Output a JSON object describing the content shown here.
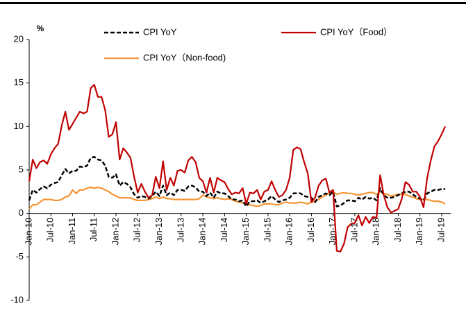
{
  "chart_data": {
    "type": "line",
    "y_label": "%",
    "categories": [
      "Jan-10",
      null,
      null,
      null,
      null,
      null,
      "Jul-10",
      null,
      null,
      null,
      null,
      null,
      "Jan-11",
      null,
      null,
      null,
      null,
      null,
      "Jul-11",
      null,
      null,
      null,
      null,
      null,
      "Jan-12",
      null,
      null,
      null,
      null,
      null,
      "Jul-12",
      null,
      null,
      null,
      null,
      null,
      "Jan-13",
      null,
      null,
      null,
      null,
      null,
      "Jul-13",
      null,
      null,
      null,
      null,
      null,
      "Jan-14",
      null,
      null,
      null,
      null,
      null,
      "Jul-14",
      null,
      null,
      null,
      null,
      null,
      "Jan-15",
      null,
      null,
      null,
      null,
      null,
      "Jul-15",
      null,
      null,
      null,
      null,
      null,
      "Jan-16",
      null,
      null,
      null,
      null,
      null,
      "Jul-16",
      null,
      null,
      null,
      null,
      null,
      "Jan-17",
      null,
      null,
      null,
      null,
      null,
      "Jul-17",
      null,
      null,
      null,
      null,
      null,
      "Jan-18",
      null,
      null,
      null,
      null,
      null,
      "Jul-18",
      null,
      null,
      null,
      null,
      null,
      "Jan-19",
      null,
      null,
      null,
      null,
      null,
      "Jul-19",
      null
    ],
    "series": [
      {
        "name": "CPI YoY",
        "color": "#000000",
        "dashed": true,
        "values": [
          1.5,
          2.7,
          2.4,
          2.8,
          3.1,
          2.9,
          3.3,
          3.5,
          3.6,
          4.4,
          5.1,
          4.6,
          4.9,
          4.9,
          5.4,
          5.3,
          5.5,
          6.4,
          6.5,
          6.2,
          6.1,
          5.5,
          4.2,
          4.1,
          4.5,
          3.2,
          3.6,
          3.4,
          3.0,
          2.2,
          1.8,
          2.0,
          1.9,
          1.7,
          2.0,
          2.5,
          2.0,
          3.2,
          2.1,
          2.4,
          2.1,
          2.7,
          2.7,
          2.6,
          3.1,
          3.2,
          3.0,
          2.5,
          2.5,
          2.0,
          2.4,
          1.8,
          2.5,
          2.3,
          2.3,
          2.0,
          1.6,
          1.6,
          1.4,
          1.5,
          0.8,
          1.4,
          1.4,
          1.5,
          1.2,
          1.4,
          1.6,
          2.0,
          1.6,
          1.3,
          1.5,
          1.6,
          1.8,
          2.3,
          2.3,
          2.3,
          2.0,
          1.9,
          1.8,
          1.3,
          1.9,
          2.1,
          2.3,
          2.1,
          2.5,
          0.8,
          0.9,
          1.2,
          1.5,
          1.5,
          1.4,
          1.8,
          1.6,
          1.9,
          1.7,
          1.8,
          1.5,
          2.9,
          2.1,
          1.8,
          1.8,
          1.9,
          2.1,
          2.3,
          2.5,
          2.5,
          2.2,
          1.9,
          1.7,
          1.5,
          2.3,
          2.5,
          2.7,
          2.7,
          2.8,
          2.8
        ]
      },
      {
        "name": "CPI YoY（Food）",
        "color": "#c00000",
        "dashed": false,
        "values": [
          3.7,
          6.2,
          5.2,
          5.9,
          6.1,
          5.7,
          6.8,
          7.5,
          8.0,
          10.1,
          11.7,
          9.6,
          10.3,
          11.0,
          11.7,
          11.5,
          11.7,
          14.4,
          14.8,
          13.4,
          13.4,
          11.9,
          8.8,
          9.1,
          10.5,
          6.2,
          7.5,
          7.0,
          6.4,
          4.2,
          2.4,
          3.4,
          2.5,
          1.8,
          2.1,
          4.2,
          2.9,
          6.0,
          2.7,
          4.1,
          3.2,
          4.9,
          5.0,
          4.7,
          6.1,
          6.5,
          5.9,
          4.1,
          3.7,
          2.4,
          4.1,
          2.4,
          4.1,
          3.8,
          3.6,
          2.8,
          2.2,
          2.4,
          2.3,
          2.9,
          1.1,
          2.4,
          2.3,
          2.7,
          1.6,
          2.5,
          2.7,
          3.7,
          2.7,
          1.9,
          2.1,
          2.7,
          4.1,
          7.3,
          7.6,
          7.4,
          5.9,
          4.6,
          1.3,
          1.8,
          3.2,
          3.8,
          4.0,
          2.4,
          2.7,
          -4.3,
          -4.4,
          -3.5,
          -1.6,
          -1.2,
          -1.1,
          -0.2,
          -1.4,
          -0.4,
          -1.1,
          -0.4,
          -0.5,
          4.4,
          2.1,
          0.7,
          0.1,
          0.3,
          0.5,
          1.7,
          3.6,
          3.3,
          2.5,
          2.5,
          1.9,
          0.7,
          4.1,
          6.1,
          7.7,
          8.3,
          9.1,
          10.0
        ]
      },
      {
        "name": "CPI YoY（Non-food)",
        "color": "#f79433",
        "dashed": false,
        "values": [
          0.5,
          1.0,
          1.0,
          1.3,
          1.6,
          1.6,
          1.6,
          1.5,
          1.5,
          1.6,
          1.9,
          2.0,
          2.7,
          2.3,
          2.7,
          2.7,
          2.9,
          3.0,
          2.9,
          3.0,
          2.9,
          2.7,
          2.5,
          2.2,
          2.0,
          1.8,
          1.8,
          1.8,
          1.8,
          1.6,
          1.5,
          1.5,
          1.5,
          1.6,
          1.7,
          1.9,
          1.7,
          1.9,
          1.7,
          1.7,
          1.6,
          1.6,
          1.6,
          1.6,
          1.6,
          1.6,
          1.6,
          1.7,
          2.1,
          1.9,
          1.8,
          1.7,
          1.8,
          1.7,
          1.6,
          1.7,
          1.6,
          1.4,
          1.3,
          1.2,
          1.0,
          1.0,
          0.9,
          0.8,
          0.9,
          1.1,
          1.1,
          1.1,
          1.0,
          1.0,
          1.2,
          1.3,
          1.2,
          1.2,
          1.2,
          1.3,
          1.2,
          1.1,
          1.3,
          1.4,
          1.6,
          1.9,
          2.1,
          2.4,
          2.5,
          2.2,
          2.3,
          2.4,
          2.3,
          2.3,
          2.2,
          2.1,
          2.2,
          2.3,
          2.4,
          2.4,
          2.2,
          2.5,
          2.3,
          2.2,
          2.0,
          2.1,
          2.2,
          2.2,
          2.2,
          2.0,
          1.9,
          1.7,
          1.6,
          1.6,
          1.6,
          1.5,
          1.4,
          1.4,
          1.3,
          1.1
        ]
      }
    ],
    "ylim": [
      -10,
      20
    ],
    "yticks": [
      -10,
      -5,
      0,
      5,
      10,
      15,
      20
    ],
    "grid": false
  }
}
